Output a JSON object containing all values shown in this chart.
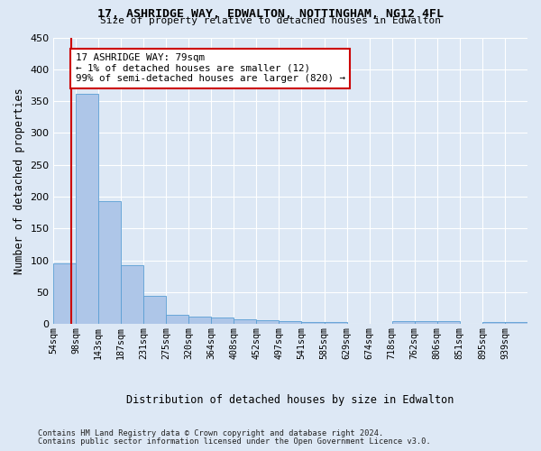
{
  "title1": "17, ASHRIDGE WAY, EDWALTON, NOTTINGHAM, NG12 4FL",
  "title2": "Size of property relative to detached houses in Edwalton",
  "xlabel": "Distribution of detached houses by size in Edwalton",
  "ylabel": "Number of detached properties",
  "footer1": "Contains HM Land Registry data © Crown copyright and database right 2024.",
  "footer2": "Contains public sector information licensed under the Open Government Licence v3.0.",
  "bin_labels": [
    "54sqm",
    "98sqm",
    "143sqm",
    "187sqm",
    "231sqm",
    "275sqm",
    "320sqm",
    "364sqm",
    "408sqm",
    "452sqm",
    "497sqm",
    "541sqm",
    "585sqm",
    "629sqm",
    "674sqm",
    "718sqm",
    "762sqm",
    "806sqm",
    "851sqm",
    "895sqm",
    "939sqm"
  ],
  "values": [
    95,
    362,
    193,
    93,
    45,
    15,
    12,
    10,
    8,
    6,
    5,
    4,
    3,
    1,
    0,
    5,
    5,
    5,
    0,
    4,
    4
  ],
  "bar_color": "#aec6e8",
  "bar_edge_color": "#5a9fd4",
  "property_bin": 0.82,
  "red_line_color": "#cc0000",
  "annotation_line1": "17 ASHRIDGE WAY: 79sqm",
  "annotation_line2": "← 1% of detached houses are smaller (12)",
  "annotation_line3": "99% of semi-detached houses are larger (820) →",
  "annotation_box_color": "#ffffff",
  "annotation_box_edge": "#cc0000",
  "bg_color": "#dde8f5",
  "plot_bg_color": "#dde8f5",
  "grid_color": "#ffffff",
  "ylim": [
    0,
    430
  ],
  "yticks": [
    0,
    50,
    100,
    150,
    200,
    250,
    300,
    350,
    400,
    450
  ]
}
